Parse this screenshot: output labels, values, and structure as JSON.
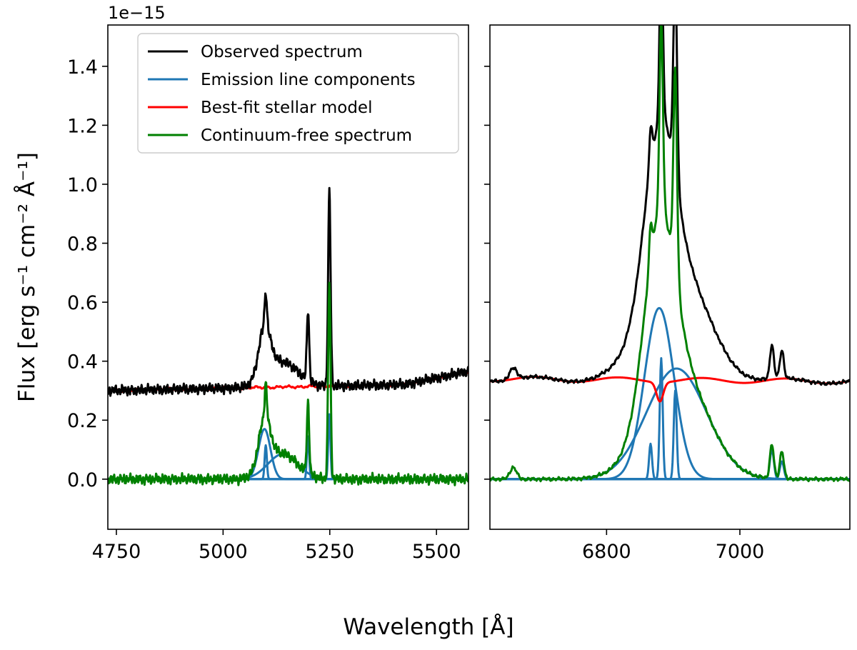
{
  "chart_data": {
    "type": "line",
    "y_offset_label": "1e−15",
    "ylabel": "Flux [erg s⁻¹ cm⁻² Å⁻¹]",
    "xlabel": "Wavelength [Å]",
    "ylim": [
      -0.17,
      1.54
    ],
    "yticks": [
      0.0,
      0.2,
      0.4,
      0.6,
      0.8,
      1.0,
      1.2,
      1.4
    ],
    "ytick_labels": [
      "0.0",
      "0.2",
      "0.4",
      "0.6",
      "0.8",
      "1.0",
      "1.2",
      "1.4"
    ],
    "legend": {
      "placement": "upper-left of left panel",
      "entries": [
        {
          "label": "Observed spectrum",
          "color": "#000000"
        },
        {
          "label": "Emission line components",
          "color": "#1f77b4"
        },
        {
          "label": "Best-fit stellar model",
          "color": "#ff0000"
        },
        {
          "label": "Continuum-free spectrum",
          "color": "#008000"
        }
      ]
    },
    "panels": [
      {
        "name": "left",
        "xlim": [
          4730,
          5575
        ],
        "xticks": [
          4750,
          5000,
          5250,
          5500
        ],
        "xtick_labels": [
          "4750",
          "5000",
          "5250",
          "5500"
        ],
        "continuum": {
          "base": 0.3,
          "slope_per_A": 3e-05,
          "ref": 4730,
          "end_rise": 0.04
        },
        "broad_components": [
          {
            "center": 5097,
            "amp": 0.17,
            "sigma": 14
          },
          {
            "center": 5140,
            "amp": 0.085,
            "sigma": 35
          }
        ],
        "narrow_components": [
          {
            "center": 5100,
            "amp": 0.115,
            "sigma": 2.6
          },
          {
            "center": 5199,
            "amp": 0.145,
            "sigma": 2.6
          },
          {
            "center": 5249,
            "amp": 0.22,
            "sigma": 2.6
          }
        ],
        "narrow_extra_in_total": [
          {
            "center": 5100,
            "amp": 0.0,
            "sigma": 2.6
          },
          {
            "center": 5199,
            "amp": 0.095,
            "sigma": 3.0
          },
          {
            "center": 5249,
            "amp": 0.44,
            "sigma": 3.0
          }
        ]
      },
      {
        "name": "right",
        "xlim": [
          6625,
          7165
        ],
        "xticks": [
          6800,
          7000
        ],
        "xtick_labels": [
          "6800",
          "7000"
        ],
        "continuum": {
          "base": 0.34,
          "slope_per_A": -1.5e-05,
          "ref": 6625,
          "dip_center": 6880,
          "dip_depth": 0.065,
          "dip_sigma": 5
        },
        "broad_components": [
          {
            "center": 6879,
            "amp": 0.58,
            "sigma": 22
          },
          {
            "center": 6905,
            "amp": 0.375,
            "sigma": 45
          }
        ],
        "narrow_components": [
          {
            "center": 6866,
            "amp": 0.12,
            "sigma": 2.2
          },
          {
            "center": 6882,
            "amp": 0.41,
            "sigma": 2.2
          },
          {
            "center": 6903,
            "amp": 0.3,
            "sigma": 2.2
          },
          {
            "center": 7048,
            "amp": 0.1,
            "sigma": 3.0
          },
          {
            "center": 7063,
            "amp": 0.06,
            "sigma": 3.0
          }
        ],
        "narrow_extra_in_total": [
          {
            "center": 6866,
            "amp": 0.0,
            "sigma": 2.2
          },
          {
            "center": 6882,
            "amp": 0.25,
            "sigma": 3.2
          },
          {
            "center": 6903,
            "amp": 0.4,
            "sigma": 3.2
          },
          {
            "center": 7048,
            "amp": 0.015,
            "sigma": 3.0
          },
          {
            "center": 7063,
            "amp": 0.035,
            "sigma": 3.0
          }
        ],
        "features": [
          {
            "center": 6660,
            "amp": 0.04,
            "sigma": 5
          }
        ]
      }
    ]
  }
}
